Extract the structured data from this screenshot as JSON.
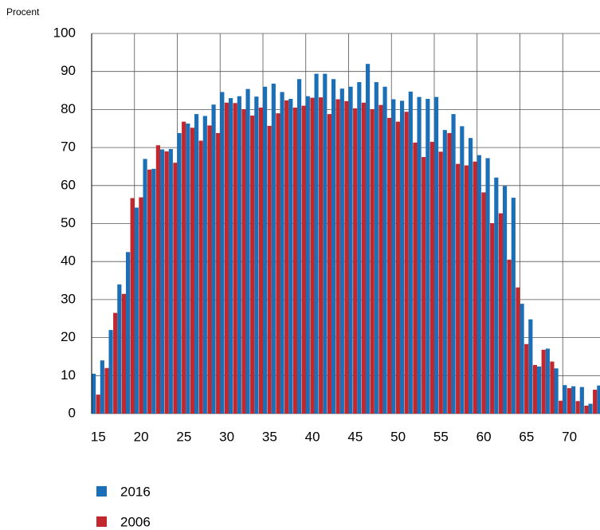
{
  "chart_data": {
    "type": "bar",
    "y_label": "Procent",
    "x": [
      15,
      16,
      17,
      18,
      19,
      20,
      21,
      22,
      23,
      24,
      25,
      26,
      27,
      28,
      29,
      30,
      31,
      32,
      33,
      34,
      35,
      36,
      37,
      38,
      39,
      40,
      41,
      42,
      43,
      44,
      45,
      46,
      47,
      48,
      49,
      50,
      51,
      52,
      53,
      54,
      55,
      56,
      57,
      58,
      59,
      60,
      61,
      62,
      63,
      64,
      65,
      66,
      67,
      68,
      69,
      70,
      71,
      72,
      73,
      74
    ],
    "series": [
      {
        "name": "2016",
        "color": "#1b6fb6",
        "values": [
          10.5,
          14,
          22,
          34,
          42.5,
          54.2,
          67,
          64.4,
          69.5,
          69.6,
          73.8,
          76.3,
          78.8,
          78.3,
          81.3,
          84.6,
          83,
          83.5,
          85.4,
          83.4,
          86,
          86.8,
          84.6,
          82.8,
          88,
          83.5,
          89.4,
          89.4,
          88,
          85.5,
          86,
          87.2,
          92,
          87.2,
          86,
          82.7,
          82.3,
          84.7,
          83.3,
          82.8,
          83.3,
          74.6,
          78.8,
          75.6,
          72.5,
          68,
          67.2,
          62.1,
          59.9,
          56.8,
          28.9,
          24.8,
          12.4,
          17.1,
          11.9,
          7.5,
          7.2,
          7,
          2.6,
          7.4
        ]
      },
      {
        "name": "2006",
        "color": "#c1272d",
        "values": [
          5,
          12,
          26.5,
          31.5,
          56.7,
          56.9,
          64.2,
          70.6,
          69,
          66,
          76.8,
          75.2,
          71.8,
          75.8,
          73.8,
          81.8,
          81.7,
          80.1,
          78.4,
          80.5,
          75.7,
          79,
          82.4,
          80.5,
          81,
          83.1,
          83.2,
          78.8,
          82.7,
          82.2,
          80.3,
          81.8,
          80.1,
          81.2,
          77.8,
          76.8,
          79.4,
          71.3,
          67.5,
          71.5,
          68.9,
          73.8,
          65.7,
          65.3,
          66.3,
          58.2,
          50.1,
          52.7,
          40.5,
          33.2,
          18.3,
          12.8,
          16.8,
          13.7,
          3.4,
          6.7,
          3.3,
          2.1,
          6.3,
          null
        ]
      }
    ],
    "xlim": [
      14.5,
      73.85
    ],
    "xticks": [
      15,
      20,
      25,
      30,
      35,
      40,
      45,
      50,
      55,
      60,
      65,
      70
    ],
    "ylim": [
      0,
      100
    ],
    "yticks": [
      0,
      10,
      20,
      30,
      40,
      50,
      60,
      70,
      80,
      90,
      100
    ],
    "grid": true
  }
}
